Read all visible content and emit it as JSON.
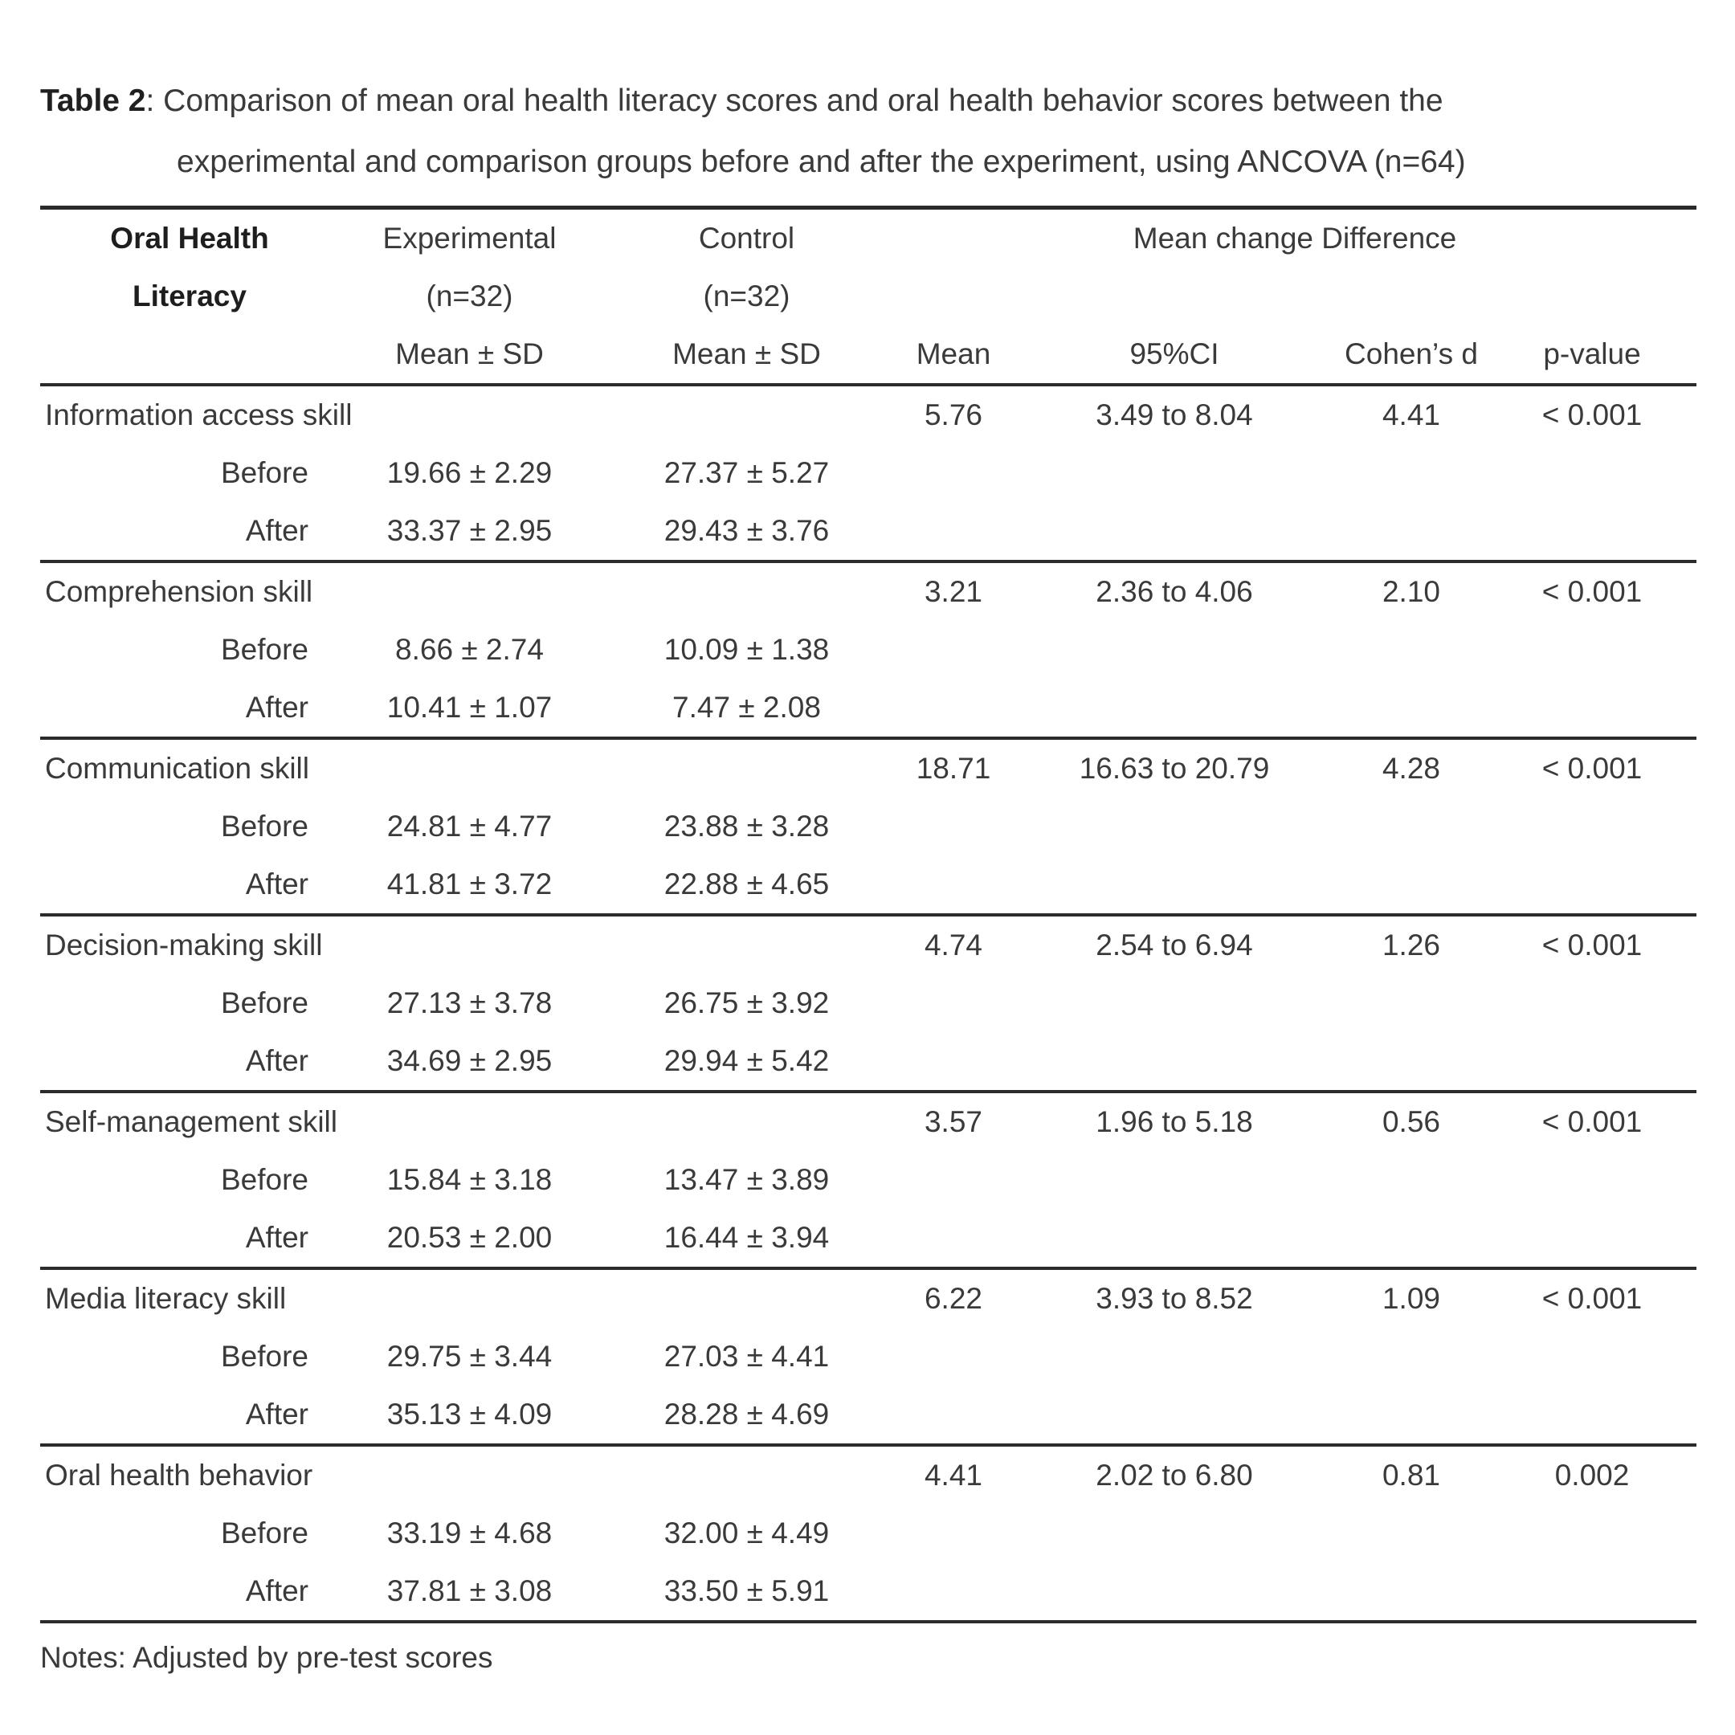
{
  "caption": {
    "label": "Table 2",
    "line1": ": Comparison of mean oral health literacy scores and oral health behavior scores between the",
    "line2": "experimental and comparison groups before and after the experiment, using ANCOVA (n=64)"
  },
  "header": {
    "col1_line1": "Oral Health",
    "col1_line2": "Literacy",
    "experimental": "Experimental",
    "experimental_n": "(n=32)",
    "control": "Control",
    "control_n": "(n=32)",
    "mean_sd": "Mean ± SD",
    "group": "Mean change Difference",
    "mean": "Mean",
    "ci": "95%CI",
    "cohens_d": "Cohen’s d",
    "p_value": "p-value"
  },
  "labels": {
    "before": "Before",
    "after": "After"
  },
  "sections": [
    {
      "skill": "Information access skill",
      "mean": "5.76",
      "ci": "3.49 to 8.04",
      "cohens_d": "4.41",
      "p": "< 0.001",
      "before": {
        "exp": "19.66 ± 2.29",
        "ctrl": "27.37 ± 5.27"
      },
      "after": {
        "exp": "33.37 ± 2.95",
        "ctrl": "29.43 ± 3.76"
      }
    },
    {
      "skill": "Comprehension skill",
      "mean": "3.21",
      "ci": "2.36 to 4.06",
      "cohens_d": "2.10",
      "p": "< 0.001",
      "before": {
        "exp": "8.66 ± 2.74",
        "ctrl": "10.09 ± 1.38"
      },
      "after": {
        "exp": "10.41 ± 1.07",
        "ctrl": "7.47 ± 2.08"
      }
    },
    {
      "skill": "Communication skill",
      "mean": "18.71",
      "ci": "16.63 to 20.79",
      "cohens_d": "4.28",
      "p": "< 0.001",
      "before": {
        "exp": "24.81 ± 4.77",
        "ctrl": "23.88 ± 3.28"
      },
      "after": {
        "exp": "41.81 ± 3.72",
        "ctrl": "22.88 ± 4.65"
      }
    },
    {
      "skill": "Decision-making skill",
      "mean": "4.74",
      "ci": "2.54 to 6.94",
      "cohens_d": "1.26",
      "p": "< 0.001",
      "before": {
        "exp": "27.13 ± 3.78",
        "ctrl": "26.75 ± 3.92"
      },
      "after": {
        "exp": "34.69 ± 2.95",
        "ctrl": "29.94 ± 5.42"
      }
    },
    {
      "skill": "Self-management skill",
      "mean": "3.57",
      "ci": "1.96 to 5.18",
      "cohens_d": "0.56",
      "p": "< 0.001",
      "before": {
        "exp": "15.84 ± 3.18",
        "ctrl": "13.47 ± 3.89"
      },
      "after": {
        "exp": "20.53 ± 2.00",
        "ctrl": "16.44 ± 3.94"
      }
    },
    {
      "skill": "Media literacy skill",
      "mean": "6.22",
      "ci": "3.93 to 8.52",
      "cohens_d": "1.09",
      "p": "< 0.001",
      "before": {
        "exp": "29.75 ± 3.44",
        "ctrl": "27.03 ± 4.41"
      },
      "after": {
        "exp": "35.13 ± 4.09",
        "ctrl": "28.28 ± 4.69"
      }
    },
    {
      "skill": "Oral health behavior",
      "mean": "4.41",
      "ci": "2.02 to 6.80",
      "cohens_d": "0.81",
      "p": "0.002",
      "before": {
        "exp": "33.19 ± 4.68",
        "ctrl": "32.00 ± 4.49"
      },
      "after": {
        "exp": "37.81 ± 3.08",
        "ctrl": "33.50 ± 5.91"
      }
    }
  ],
  "notes": "Notes: Adjusted by pre-test scores",
  "colors": {
    "text": "#2e2e2e",
    "rule": "#2b2b2b",
    "background": "#ffffff"
  }
}
